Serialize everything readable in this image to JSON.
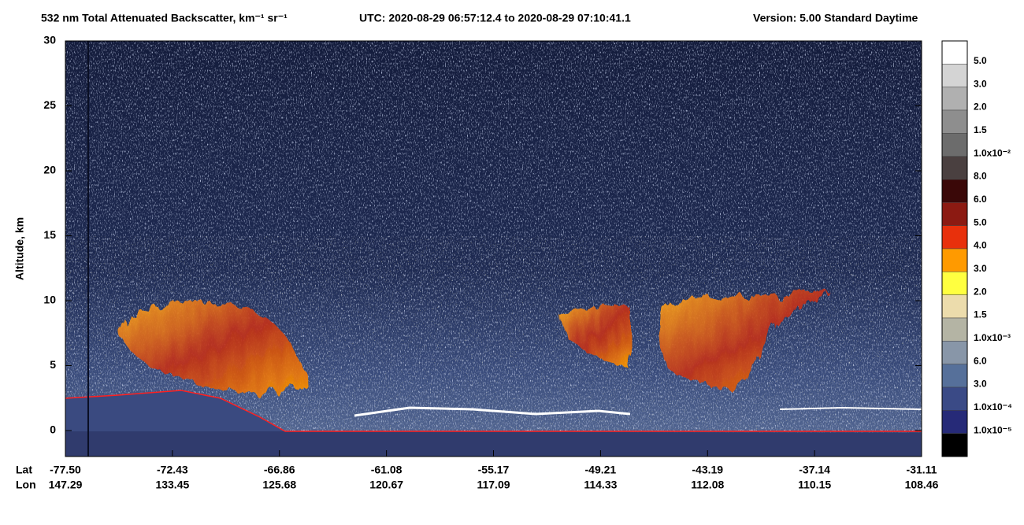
{
  "chart_data": {
    "type": "heatmap",
    "title": "532 nm Total Attenuated Backscatter, km⁻¹ sr⁻¹",
    "time_range": "UTC:  2020-08-29 06:57:12.4  to  2020-08-29 07:10:41.1",
    "version": "Version: 5.00  Standard  Daytime",
    "ylabel": "Altitude, km",
    "ylim": [
      -2,
      30
    ],
    "yticks": [
      0,
      5,
      10,
      15,
      20,
      25,
      30
    ],
    "x_row_labels": [
      "Lat",
      "Lon"
    ],
    "x_lat": [
      "-77.50",
      "-72.43",
      "-66.86",
      "-61.08",
      "-55.17",
      "-49.21",
      "-43.19",
      "-37.14",
      "-31.11"
    ],
    "x_lon": [
      "147.29",
      "133.45",
      "125.68",
      "120.67",
      "117.09",
      "114.33",
      "112.08",
      "110.15",
      "108.46"
    ],
    "colorbar": {
      "colors": [
        "#ffffff",
        "#d4d4d4",
        "#b0b0b0",
        "#8e8e8e",
        "#6c6c6c",
        "#4a4040",
        "#3a0808",
        "#8c1a12",
        "#e8300c",
        "#ff9a00",
        "#ffff40",
        "#ecdcac",
        "#b4b4a4",
        "#8896a8",
        "#56709a",
        "#3a4a86",
        "#262a78",
        "#000000"
      ],
      "labels": [
        "5.0",
        "3.0",
        "2.0",
        "1.5",
        "1.0x10⁻²",
        "8.0",
        "6.0",
        "5.0",
        "4.0",
        "3.0",
        "2.0",
        "1.5",
        "1.0x10⁻³",
        "6.0",
        "3.0",
        "1.0x10⁻⁴",
        "1.0x10⁻⁵"
      ]
    }
  }
}
